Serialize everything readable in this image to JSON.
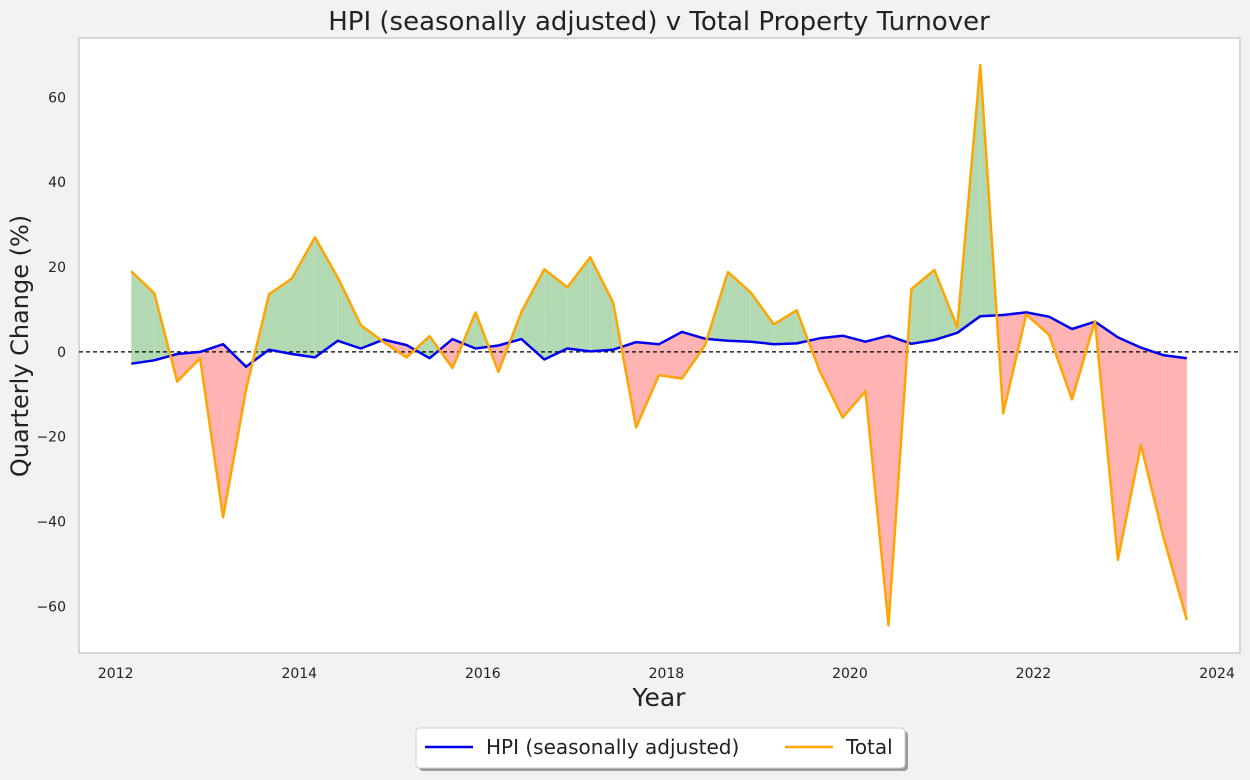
{
  "colors": {
    "hpi_line": "#0000ee",
    "total_line": "#ffa500",
    "fill_positive": "#b2d9b2",
    "fill_negative": "#ffb3b3",
    "zero_line": "#000000"
  },
  "chart_data": {
    "type": "line",
    "title": "HPI (seasonally adjusted) v Total Property Turnover",
    "xlabel": "Year",
    "ylabel": "Quarterly Change (%)",
    "xlim": [
      2011.6,
      2024.25
    ],
    "ylim": [
      -71,
      74
    ],
    "xticks": [
      2012,
      2014,
      2016,
      2018,
      2020,
      2022,
      2024
    ],
    "xtick_labels": [
      "2012",
      "2014",
      "2016",
      "2018",
      "2020",
      "2022",
      "2024"
    ],
    "yticks": [
      -60,
      -40,
      -20,
      0,
      20,
      40,
      60
    ],
    "ytick_labels": [
      "−60",
      "−40",
      "−20",
      "0",
      "20",
      "40",
      "60"
    ],
    "grid": false,
    "zero_reference_line": true,
    "legend_position": "bottom-center",
    "fill_between": "green where Total above HPI, red where Total below HPI",
    "x": [
      2012.17,
      2012.42,
      2012.67,
      2012.92,
      2013.17,
      2013.42,
      2013.67,
      2013.92,
      2014.17,
      2014.42,
      2014.67,
      2014.92,
      2015.17,
      2015.42,
      2015.67,
      2015.92,
      2016.17,
      2016.42,
      2016.67,
      2016.92,
      2017.17,
      2017.42,
      2017.67,
      2017.92,
      2018.17,
      2018.42,
      2018.67,
      2018.92,
      2019.17,
      2019.42,
      2019.67,
      2019.92,
      2020.17,
      2020.42,
      2020.67,
      2020.92,
      2021.17,
      2021.42,
      2021.67,
      2021.92,
      2022.17,
      2022.42,
      2022.67,
      2022.92,
      2023.17,
      2023.42,
      2023.67
    ],
    "series": [
      {
        "name": "HPI (seasonally adjusted)",
        "values": [
          -2.8,
          -2.0,
          -0.5,
          0.0,
          1.8,
          -3.5,
          0.5,
          -0.5,
          -1.3,
          2.6,
          0.8,
          2.9,
          1.6,
          -1.5,
          3.0,
          0.8,
          1.5,
          3.0,
          -1.8,
          0.8,
          0.1,
          0.5,
          2.3,
          1.8,
          4.7,
          3.1,
          2.6,
          2.4,
          1.8,
          2.0,
          3.2,
          3.8,
          2.4,
          3.8,
          1.9,
          2.8,
          4.5,
          8.4,
          8.7,
          9.3,
          8.3,
          5.4,
          7.1,
          3.4,
          1.0,
          -0.8,
          -1.5
        ]
      },
      {
        "name": "Total",
        "values": [
          19.0,
          13.8,
          -7.0,
          -1.5,
          -39.0,
          -9.0,
          13.6,
          17.3,
          27.0,
          17.5,
          6.3,
          2.3,
          -1.3,
          3.7,
          -3.8,
          9.3,
          -4.7,
          9.4,
          19.5,
          15.2,
          22.3,
          11.6,
          -17.8,
          -5.5,
          -6.3,
          1.5,
          18.8,
          14.0,
          6.5,
          9.8,
          -4.5,
          -15.5,
          -9.3,
          -64.5,
          14.8,
          19.3,
          5.8,
          67.6,
          -14.5,
          8.8,
          4.0,
          -11.2,
          7.3,
          -49.0,
          -22.0,
          -44.0,
          -63.2
        ]
      }
    ]
  }
}
